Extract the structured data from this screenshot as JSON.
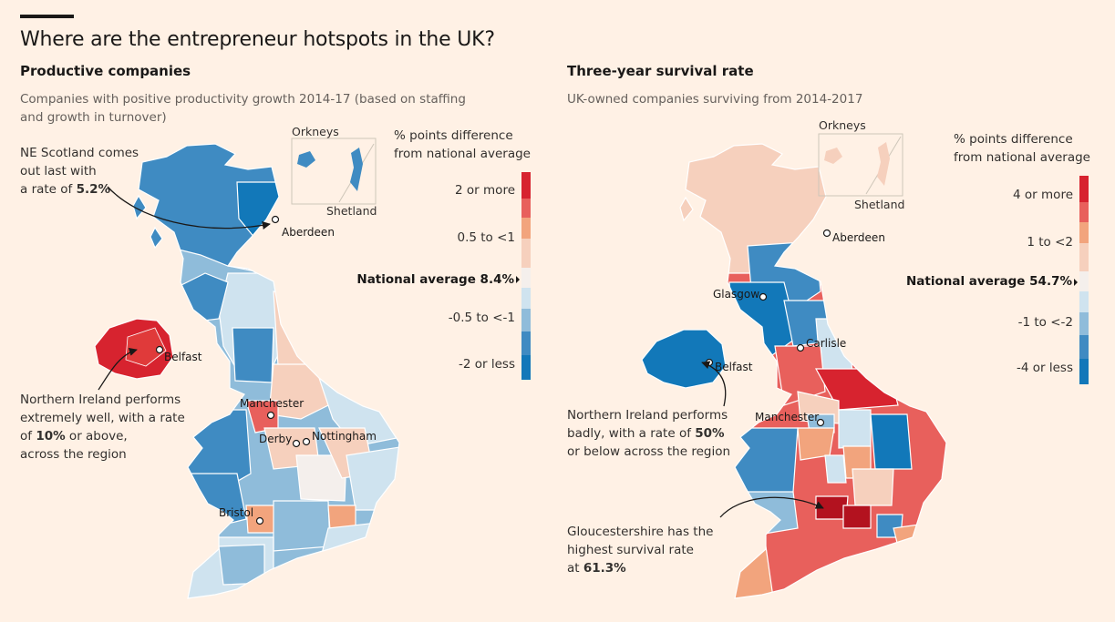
{
  "headline": "Where are the entrepreneur hotspots in the UK?",
  "colors": {
    "background": "#fff1e5",
    "red_strong": "#d7232f",
    "red_mid": "#e8605c",
    "orange": "#f2a47d",
    "pink_light": "#f6d0bd",
    "neutral": "#f4efec",
    "blue_light": "#cfe3ef",
    "blue_mid": "#8fbcda",
    "blue": "#3f8bc2",
    "blue_strong": "#1278b9"
  },
  "left": {
    "title": "Productive companies",
    "subtitle_line1": "Companies with positive productivity growth 2014-17 (based on staffing",
    "subtitle_line2": "and growth in turnover)",
    "legend_head_1": "% points difference",
    "legend_head_2": "from national average",
    "legend_top": "2 or more",
    "legend_upper": "0.5 to <1",
    "national": "National average 8.4%",
    "legend_lower": "-0.5 to <-1",
    "legend_bottom": "-2 or less",
    "inset_top": "Orkneys",
    "inset_bottom": "Shetland",
    "note1_l1": "NE Scotland comes",
    "note1_l2": "out last with",
    "note1_l3a": "a rate of ",
    "note1_l3b": "5.2%",
    "note2_l1": "Northern Ireland performs",
    "note2_l2": "extremely well, with a rate",
    "note2_l3a": "of ",
    "note2_l3b": "10%",
    "note2_l3c": " or above,",
    "note2_l4": "across the region",
    "cities": {
      "aberdeen": "Aberdeen",
      "belfast": "Belfast",
      "manchester": "Manchester",
      "derby": "Derby",
      "nottingham": "Nottingham",
      "bristol": "Bristol"
    }
  },
  "right": {
    "title": "Three-year survival rate",
    "subtitle": "UK-owned companies surviving from 2014-2017",
    "legend_head_1": "% points difference",
    "legend_head_2": "from national average",
    "legend_top": "4 or more",
    "legend_upper": "1 to <2",
    "national": "National average 54.7%",
    "legend_lower": "-1 to <-2",
    "legend_bottom": "-4 or less",
    "inset_top": "Orkneys",
    "inset_bottom": "Shetland",
    "note1_l1": "Northern Ireland performs",
    "note1_l2a": "badly, with a rate of ",
    "note1_l2b": "50%",
    "note1_l3": "or below across the region",
    "note2_l1": "Gloucestershire has the",
    "note2_l2": "highest survival rate",
    "note2_l3a": "at ",
    "note2_l3b": "61.3%",
    "cities": {
      "aberdeen": "Aberdeen",
      "glasgow": "Glasgow",
      "carlisle": "Carlisle",
      "belfast": "Belfast",
      "manchester": "Manchester"
    }
  }
}
